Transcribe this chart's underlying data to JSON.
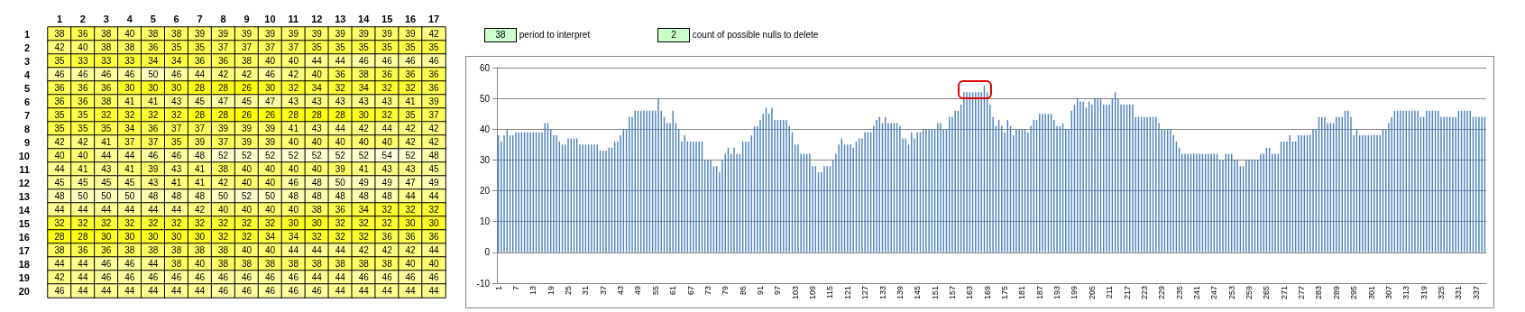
{
  "chart_data": [
    {
      "type": "heatmap",
      "categories": [
        "1",
        "2",
        "3",
        "4",
        "5",
        "6",
        "7",
        "8",
        "9",
        "10",
        "11",
        "12",
        "13",
        "14",
        "15",
        "16",
        "17"
      ],
      "y_categories": [
        "1",
        "2",
        "3",
        "4",
        "5",
        "6",
        "7",
        "8",
        "9",
        "10",
        "11",
        "12",
        "13",
        "14",
        "15",
        "16",
        "17",
        "18",
        "19",
        "20"
      ],
      "cells": [
        [
          38,
          36,
          38,
          40,
          38,
          38,
          39,
          39,
          39,
          39,
          39,
          39,
          39,
          39,
          39,
          39,
          42
        ],
        [
          42,
          40,
          38,
          38,
          36,
          35,
          35,
          37,
          37,
          37,
          37,
          35,
          35,
          35,
          35,
          35,
          35
        ],
        [
          35,
          33,
          33,
          33,
          34,
          34,
          36,
          36,
          38,
          40,
          40,
          44,
          44,
          46,
          46,
          46,
          46
        ],
        [
          46,
          46,
          46,
          46,
          50,
          46,
          44,
          42,
          42,
          46,
          42,
          40,
          36,
          38,
          36,
          36,
          36
        ],
        [
          36,
          36,
          36,
          30,
          30,
          30,
          28,
          28,
          26,
          30,
          32,
          34,
          32,
          34,
          32,
          32,
          36
        ],
        [
          36,
          36,
          38,
          41,
          41,
          43,
          45,
          47,
          45,
          47,
          43,
          43,
          43,
          43,
          43,
          41,
          39
        ],
        [
          35,
          35,
          32,
          32,
          32,
          32,
          28,
          28,
          26,
          26,
          28,
          28,
          28,
          30,
          32,
          35,
          37
        ],
        [
          35,
          35,
          35,
          34,
          36,
          37,
          37,
          39,
          39,
          39,
          41,
          43,
          44,
          42,
          44,
          42,
          42
        ],
        [
          42,
          42,
          41,
          37,
          37,
          35,
          39,
          37,
          39,
          39,
          40,
          40,
          40,
          40,
          40,
          42,
          42
        ],
        [
          40,
          40,
          44,
          44,
          46,
          46,
          48,
          52,
          52,
          52,
          52,
          52,
          52,
          52,
          54,
          52,
          48
        ],
        [
          44,
          41,
          43,
          41,
          39,
          43,
          41,
          38,
          40,
          40,
          40,
          40,
          39,
          41,
          43,
          43,
          45
        ],
        [
          45,
          45,
          45,
          45,
          43,
          41,
          41,
          42,
          40,
          40,
          46,
          48,
          50,
          49,
          49,
          47,
          49
        ],
        [
          48,
          50,
          50,
          50,
          48,
          48,
          48,
          50,
          52,
          50,
          48,
          48,
          48,
          48,
          48,
          44,
          44
        ],
        [
          44,
          44,
          44,
          44,
          44,
          44,
          42,
          40,
          40,
          40,
          40,
          38,
          36,
          34,
          32,
          32,
          32
        ],
        [
          32,
          32,
          32,
          32,
          32,
          32,
          32,
          32,
          32,
          32,
          30,
          30,
          32,
          32,
          32,
          30,
          30
        ],
        [
          28,
          28,
          30,
          30,
          30,
          30,
          30,
          32,
          32,
          34,
          34,
          32,
          32,
          32,
          36,
          36,
          36
        ],
        [
          38,
          36,
          36,
          38,
          38,
          38,
          38,
          38,
          40,
          40,
          44,
          44,
          44,
          42,
          42,
          42,
          44
        ],
        [
          44,
          44,
          46,
          46,
          44,
          38,
          40,
          38,
          38,
          38,
          38,
          38,
          38,
          38,
          38,
          40,
          40
        ],
        [
          42,
          44,
          46,
          46,
          46,
          46,
          46,
          46,
          46,
          46,
          46,
          44,
          44,
          46,
          46,
          46,
          46
        ],
        [
          46,
          44,
          44,
          44,
          44,
          44,
          44,
          46,
          46,
          46,
          46,
          46,
          44,
          44,
          44,
          44,
          44
        ]
      ],
      "data_labels": true
    },
    {
      "type": "bar",
      "color": "#4f81bd",
      "ylim": [
        -10,
        60
      ],
      "yticks": [
        -10,
        0,
        10,
        20,
        30,
        40,
        50,
        60
      ],
      "grid": "y",
      "annotations": [
        "38 period to interpret",
        "2 count of possible nulls to delete"
      ],
      "categories": [
        "1",
        null,
        null,
        null,
        null,
        null,
        "7",
        null,
        null,
        null,
        null,
        null,
        "13",
        null,
        null,
        null,
        null,
        null,
        "19",
        null,
        null,
        null,
        null,
        null,
        "25",
        null,
        null,
        null,
        null,
        null,
        "31",
        null,
        null,
        null,
        null,
        null,
        "37",
        null,
        null,
        null,
        null,
        null,
        "43",
        null,
        null,
        null,
        null,
        null,
        "49",
        null,
        null,
        null,
        null,
        null,
        "55",
        null,
        null,
        null,
        null,
        null,
        "61",
        null,
        null,
        null,
        null,
        null,
        "67",
        null,
        null,
        null,
        null,
        null,
        "73",
        null,
        null,
        null,
        null,
        null,
        "79",
        null,
        null,
        null,
        null,
        null,
        "85",
        null,
        null,
        null,
        null,
        null,
        "91",
        null,
        null,
        null,
        null,
        null,
        "97",
        null,
        null,
        null,
        null,
        null,
        "103",
        null,
        null,
        null,
        null,
        null,
        "109",
        null,
        null,
        null,
        null,
        null,
        "115",
        null,
        null,
        null,
        null,
        null,
        "121",
        null,
        null,
        null,
        null,
        null,
        "127",
        null,
        null,
        null,
        null,
        null,
        "133",
        null,
        null,
        null,
        null,
        null,
        "139",
        null,
        null,
        null,
        null,
        null,
        "145",
        null,
        null,
        null,
        null,
        null,
        "151",
        null,
        null,
        null,
        null,
        null,
        "157",
        null,
        null,
        null,
        null,
        null,
        "163",
        null,
        null,
        null,
        null,
        null,
        "169",
        null,
        null,
        null,
        null,
        null,
        "175",
        null,
        null,
        null,
        null,
        null,
        "181",
        null,
        null,
        null,
        null,
        null,
        "187",
        null,
        null,
        null,
        null,
        null,
        "193",
        null,
        null,
        null,
        null,
        null,
        "199",
        null,
        null,
        null,
        null,
        null,
        "205",
        null,
        null,
        null,
        null,
        null,
        "211",
        null,
        null,
        null,
        null,
        null,
        "217",
        null,
        null,
        null,
        null,
        null,
        "223",
        null,
        null,
        null,
        null,
        null,
        "229",
        null,
        null,
        null,
        null,
        null,
        "235",
        null,
        null,
        null,
        null,
        null,
        "241",
        null,
        null,
        null,
        null,
        null,
        "247",
        null,
        null,
        null,
        null,
        null,
        "253",
        null,
        null,
        null,
        null,
        null,
        "259",
        null,
        null,
        null,
        null,
        null,
        "265",
        null,
        null,
        null,
        null,
        null,
        "271",
        null,
        null,
        null,
        null,
        null,
        "277",
        null,
        null,
        null,
        null,
        null,
        "283",
        null,
        null,
        null,
        null,
        null,
        "289",
        null,
        null,
        null,
        null,
        null,
        "295",
        null,
        null,
        null,
        null,
        null,
        "301",
        null,
        null,
        null,
        null,
        null,
        "307",
        null,
        null,
        null,
        null,
        null,
        "313",
        null,
        null,
        null,
        null,
        null,
        "319",
        null,
        null,
        null,
        null,
        null,
        "325",
        null,
        null,
        null,
        null,
        null,
        "331",
        null,
        null,
        null,
        null,
        null,
        "337",
        null,
        null,
        null
      ],
      "values": [
        38,
        36,
        38,
        40,
        38,
        38,
        39,
        39,
        39,
        39,
        39,
        39,
        39,
        39,
        39,
        39,
        42,
        42,
        40,
        38,
        38,
        36,
        35,
        35,
        37,
        37,
        37,
        37,
        35,
        35,
        35,
        35,
        35,
        35,
        35,
        33,
        33,
        33,
        34,
        34,
        36,
        36,
        38,
        40,
        40,
        44,
        44,
        46,
        46,
        46,
        46,
        46,
        46,
        46,
        46,
        50,
        46,
        44,
        42,
        42,
        46,
        42,
        40,
        36,
        38,
        36,
        36,
        36,
        36,
        36,
        36,
        30,
        30,
        30,
        28,
        28,
        26,
        30,
        32,
        34,
        32,
        34,
        32,
        32,
        36,
        36,
        36,
        38,
        41,
        41,
        43,
        45,
        47,
        45,
        47,
        43,
        43,
        43,
        43,
        43,
        41,
        39,
        35,
        35,
        32,
        32,
        32,
        32,
        28,
        28,
        26,
        26,
        28,
        28,
        28,
        30,
        32,
        35,
        37,
        35,
        35,
        35,
        34,
        36,
        37,
        37,
        39,
        39,
        39,
        41,
        43,
        44,
        42,
        44,
        42,
        42,
        42,
        42,
        41,
        37,
        37,
        35,
        39,
        37,
        39,
        39,
        40,
        40,
        40,
        40,
        40,
        42,
        42,
        40,
        40,
        44,
        44,
        46,
        46,
        48,
        52,
        52,
        52,
        52,
        52,
        52,
        52,
        54,
        52,
        48,
        44,
        41,
        43,
        41,
        39,
        43,
        41,
        38,
        40,
        40,
        40,
        40,
        39,
        41,
        43,
        43,
        45,
        45,
        45,
        45,
        45,
        43,
        41,
        41,
        42,
        40,
        40,
        46,
        48,
        50,
        49,
        49,
        47,
        49,
        48,
        50,
        50,
        50,
        48,
        48,
        48,
        50,
        52,
        50,
        48,
        48,
        48,
        48,
        48,
        44,
        44,
        44,
        44,
        44,
        44,
        44,
        44,
        42,
        40,
        40,
        40,
        40,
        38,
        36,
        34,
        32,
        32,
        32,
        32,
        32,
        32,
        32,
        32,
        32,
        32,
        32,
        32,
        32,
        30,
        30,
        32,
        32,
        32,
        30,
        30,
        28,
        28,
        30,
        30,
        30,
        30,
        30,
        32,
        32,
        34,
        34,
        32,
        32,
        32,
        36,
        36,
        36,
        38,
        36,
        36,
        38,
        38,
        38,
        38,
        38,
        40,
        40,
        44,
        44,
        44,
        42,
        42,
        42,
        44,
        44,
        44,
        46,
        46,
        44,
        38,
        40,
        38,
        38,
        38,
        38,
        38,
        38,
        38,
        38,
        40,
        40,
        42,
        44,
        46,
        46,
        46,
        46,
        46,
        46,
        46,
        46,
        46,
        44,
        44,
        46,
        46,
        46,
        46,
        46,
        44,
        44,
        44,
        44,
        44,
        44,
        46,
        46,
        46,
        46,
        46,
        44,
        44,
        44,
        44,
        44
      ]
    }
  ]
}
